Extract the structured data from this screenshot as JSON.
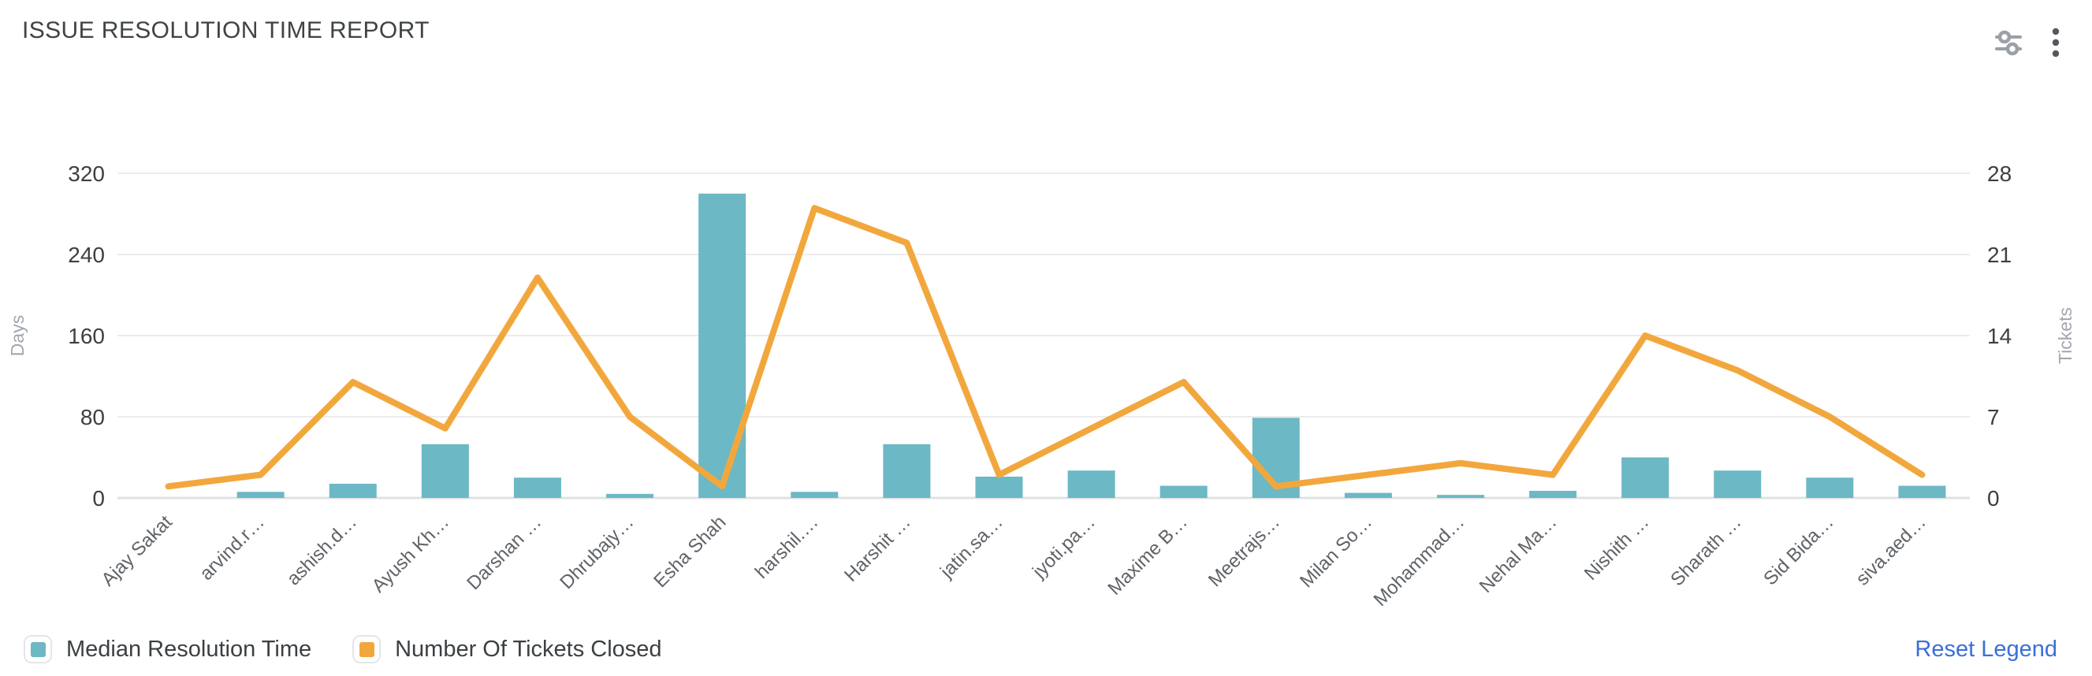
{
  "header": {
    "title": "ISSUE RESOLUTION TIME REPORT",
    "icons": [
      {
        "name": "filter-sliders-icon"
      },
      {
        "name": "kebab-menu-icon"
      }
    ]
  },
  "legend": {
    "items": [
      {
        "label": "Median Resolution Time",
        "color": "#6cb8c4"
      },
      {
        "label": "Number Of Tickets Closed",
        "color": "#f2a73d"
      }
    ],
    "reset_label": "Reset Legend",
    "reset_color": "#3a6fd7"
  },
  "chart_data": {
    "type": "bar",
    "subtype": "combo-bar-line-dual-axis",
    "categories": [
      "Ajay Sakat",
      "arvind.r…",
      "ashish.d…",
      "Ayush Kh…",
      "Darshan …",
      "Dhrubajy…",
      "Esha Shah",
      "harshil.…",
      "Harshit …",
      "jatin.sa…",
      "jyoti.pa…",
      "Maxime B…",
      "Meetrajs…",
      "Milan So…",
      "Mohammad…",
      "Nehal Ma…",
      "Nishith …",
      "Sharath …",
      "Sid Bida…",
      "siva.aed…"
    ],
    "series": [
      {
        "name": "Median Resolution Time",
        "type": "bar",
        "axis": "left",
        "color": "#6cb8c4",
        "values": [
          0,
          6,
          14,
          53,
          20,
          4,
          300,
          6,
          53,
          21,
          27,
          12,
          79,
          5,
          3,
          7,
          40,
          27,
          20,
          12
        ]
      },
      {
        "name": "Number Of Tickets Closed",
        "type": "line",
        "axis": "right",
        "color": "#f2a73d",
        "values": [
          1,
          2,
          10,
          6,
          19,
          7,
          1,
          25,
          22,
          2,
          6,
          10,
          1,
          2,
          3,
          2,
          14,
          11,
          7,
          2
        ]
      }
    ],
    "left_axis": {
      "label": "Days",
      "ticks": [
        0,
        80,
        160,
        240,
        320
      ],
      "min": 0,
      "max": 320
    },
    "right_axis": {
      "label": "Tickets",
      "ticks": [
        0,
        7,
        14,
        21,
        28
      ],
      "min": 0,
      "max": 28
    },
    "grid": "horizontal-only",
    "legend_position": "bottom-left",
    "x_label_rotation": -45
  }
}
